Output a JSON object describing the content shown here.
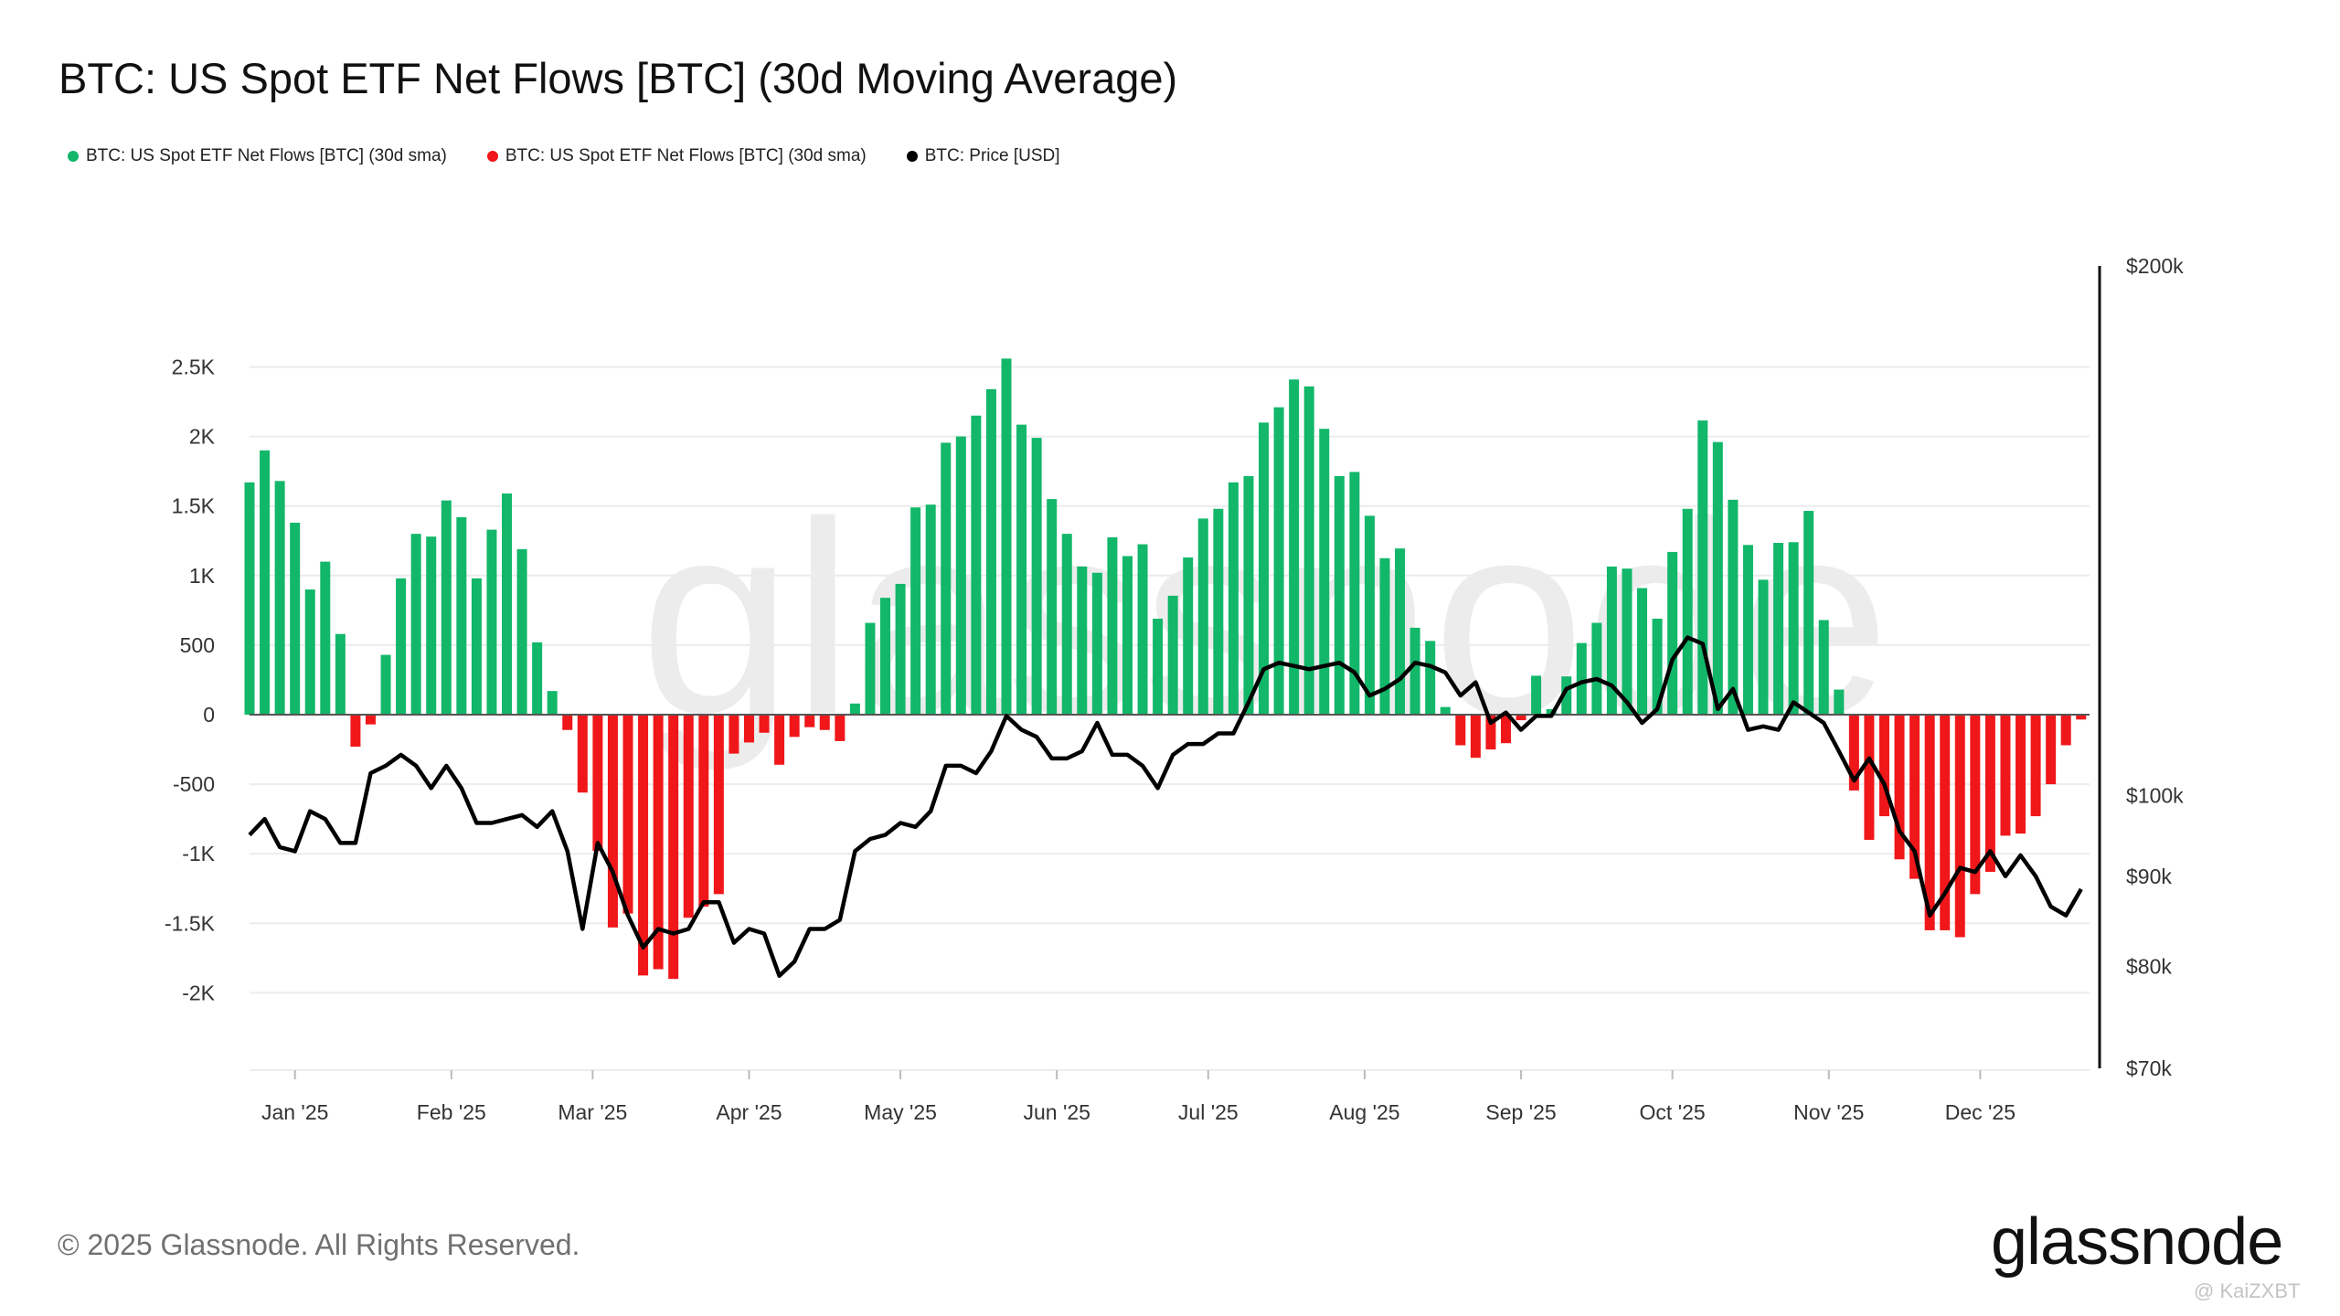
{
  "title": "BTC: US Spot ETF Net Flows [BTC] (30d Moving Average)",
  "legend": [
    {
      "label": "BTC: US Spot ETF Net Flows [BTC] (30d sma)",
      "color": "#12b76a"
    },
    {
      "label": "BTC: US Spot ETF Net Flows [BTC] (30d sma)",
      "color": "#f0171a"
    },
    {
      "label": "BTC: Price [USD]",
      "color": "#000000"
    }
  ],
  "footer": "© 2025 Glassnode. All Rights Reserved.",
  "logo": "glassnode",
  "watermark": "glassnode",
  "credit": "@ KaiZXBT",
  "chart_data": {
    "type": "bar+line",
    "title": "BTC: US Spot ETF Net Flows [BTC] (30d Moving Average)",
    "left_axis": {
      "ticks": [
        2500,
        2000,
        1500,
        1000,
        500,
        0,
        -500,
        -1000,
        -1500,
        -2000
      ],
      "tick_labels": [
        "2.5K",
        "2K",
        "1.5K",
        "1K",
        "500",
        "0",
        "-500",
        "-1K",
        "-1.5K",
        "-2K"
      ],
      "range": [
        -2300,
        2600
      ]
    },
    "right_axis": {
      "scale": "log",
      "ticks": [
        200000,
        100000,
        90000,
        80000,
        70000
      ],
      "tick_labels": [
        "$200k",
        "$100k",
        "$90k",
        "$80k",
        "$70k"
      ],
      "range": [
        70000,
        200000
      ]
    },
    "x_tick_labels": [
      "Jan '25",
      "Feb '25",
      "Mar '25",
      "Apr '25",
      "May '25",
      "Jun '25",
      "Jul '25",
      "Aug '25",
      "Sep '25",
      "Oct '25",
      "Nov '25",
      "Dec '25"
    ],
    "x_ticks": [
      "2025-01-01",
      "2025-02-01",
      "2025-03-01",
      "2025-04-01",
      "2025-05-01",
      "2025-06-01",
      "2025-07-01",
      "2025-08-01",
      "2025-09-01",
      "2025-10-01",
      "2025-11-01",
      "2025-12-01"
    ],
    "grid": true,
    "colors": {
      "positive": "#12b76a",
      "negative": "#f0171a",
      "price": "#000000"
    },
    "dates": [
      "2024-12-23",
      "2024-12-26",
      "2024-12-29",
      "2025-01-01",
      "2025-01-04",
      "2025-01-07",
      "2025-01-10",
      "2025-01-13",
      "2025-01-16",
      "2025-01-19",
      "2025-01-22",
      "2025-01-25",
      "2025-01-28",
      "2025-01-31",
      "2025-02-03",
      "2025-02-06",
      "2025-02-09",
      "2025-02-12",
      "2025-02-15",
      "2025-02-18",
      "2025-02-21",
      "2025-02-24",
      "2025-02-27",
      "2025-03-02",
      "2025-03-05",
      "2025-03-08",
      "2025-03-11",
      "2025-03-14",
      "2025-03-17",
      "2025-03-20",
      "2025-03-23",
      "2025-03-26",
      "2025-03-29",
      "2025-04-01",
      "2025-04-04",
      "2025-04-07",
      "2025-04-10",
      "2025-04-13",
      "2025-04-16",
      "2025-04-19",
      "2025-04-22",
      "2025-04-25",
      "2025-04-28",
      "2025-05-01",
      "2025-05-04",
      "2025-05-07",
      "2025-05-10",
      "2025-05-13",
      "2025-05-16",
      "2025-05-19",
      "2025-05-22",
      "2025-05-25",
      "2025-05-28",
      "2025-05-31",
      "2025-06-03",
      "2025-06-06",
      "2025-06-09",
      "2025-06-12",
      "2025-06-15",
      "2025-06-18",
      "2025-06-21",
      "2025-06-24",
      "2025-06-27",
      "2025-06-30",
      "2025-07-03",
      "2025-07-06",
      "2025-07-09",
      "2025-07-12",
      "2025-07-15",
      "2025-07-18",
      "2025-07-21",
      "2025-07-24",
      "2025-07-27",
      "2025-07-30",
      "2025-08-02",
      "2025-08-05",
      "2025-08-08",
      "2025-08-11",
      "2025-08-14",
      "2025-08-17",
      "2025-08-20",
      "2025-08-23",
      "2025-08-26",
      "2025-08-29",
      "2025-09-01",
      "2025-09-04",
      "2025-09-07",
      "2025-09-10",
      "2025-09-13",
      "2025-09-16",
      "2025-09-19",
      "2025-09-22",
      "2025-09-25",
      "2025-09-28",
      "2025-10-01",
      "2025-10-04",
      "2025-10-07",
      "2025-10-10",
      "2025-10-13",
      "2025-10-16",
      "2025-10-19",
      "2025-10-22",
      "2025-10-25",
      "2025-10-28",
      "2025-10-31",
      "2025-11-03",
      "2025-11-06",
      "2025-11-09",
      "2025-11-12",
      "2025-11-15",
      "2025-11-18",
      "2025-11-21",
      "2025-11-24",
      "2025-11-27",
      "2025-11-30",
      "2025-12-03",
      "2025-12-06",
      "2025-12-09",
      "2025-12-12",
      "2025-12-15",
      "2025-12-18",
      "2025-12-21"
    ],
    "series": [
      {
        "name": "BTC: US Spot ETF Net Flows [BTC] (30d sma)",
        "axis": "left",
        "type": "bar",
        "values": [
          1670,
          1900,
          1680,
          1380,
          900,
          1100,
          580,
          -230,
          -70,
          430,
          980,
          1300,
          1280,
          1540,
          1420,
          980,
          1330,
          1590,
          1190,
          520,
          170,
          -110,
          -560,
          -980,
          -1530,
          -1430,
          -1875,
          -1830,
          -1900,
          -1460,
          -1380,
          -1290,
          -280,
          -200,
          -130,
          -360,
          -160,
          -90,
          -110,
          -190,
          80,
          660,
          840,
          940,
          1490,
          1510,
          1955,
          2000,
          2150,
          2340,
          2560,
          2085,
          1990,
          1550,
          1300,
          1065,
          1020,
          1275,
          1140,
          1225,
          690,
          855,
          1130,
          1410,
          1480,
          1670,
          1715,
          2100,
          2210,
          2410,
          2360,
          2055,
          1715,
          1745,
          1430,
          1125,
          1195,
          625,
          530,
          55,
          -220,
          -310,
          -250,
          -205,
          -40,
          280,
          40,
          275,
          515,
          660,
          1065,
          1050,
          910,
          690,
          1170,
          1480,
          2115,
          1960,
          1545,
          1220,
          970,
          1235,
          1240,
          1465,
          680,
          180,
          -545,
          -900,
          -730,
          -1040,
          -1180,
          -1550,
          -1550,
          -1600,
          -1290,
          -1130,
          -870,
          -855,
          -730,
          -500,
          -220,
          -35
        ]
      },
      {
        "name": "BTC: Price [USD]",
        "axis": "right",
        "type": "line",
        "values": [
          95000,
          97000,
          93500,
          93000,
          98000,
          97000,
          94000,
          94000,
          103000,
          104000,
          105500,
          104000,
          101000,
          104000,
          101000,
          96500,
          96500,
          97000,
          97500,
          96000,
          98000,
          93000,
          84000,
          94000,
          90500,
          85500,
          82000,
          84000,
          83500,
          84000,
          87000,
          87000,
          82500,
          84000,
          83500,
          79000,
          80500,
          84000,
          84000,
          85000,
          93000,
          94500,
          95000,
          96500,
          96000,
          98000,
          104000,
          104000,
          103000,
          106000,
          111000,
          109000,
          108000,
          105000,
          105000,
          106000,
          110000,
          105500,
          105500,
          104000,
          101000,
          105500,
          107000,
          107000,
          108500,
          108500,
          113000,
          118000,
          119000,
          118500,
          118000,
          118500,
          119000,
          117500,
          114000,
          115000,
          116500,
          119000,
          118500,
          117500,
          114000,
          116000,
          110000,
          111500,
          109000,
          111000,
          111000,
          115000,
          116000,
          116500,
          115500,
          113000,
          110000,
          112000,
          119500,
          123000,
          122000,
          112000,
          115000,
          109000,
          109500,
          109000,
          113000,
          111500,
          110000,
          106000,
          102000,
          105000,
          101500,
          95500,
          93000,
          85500,
          88000,
          91000,
          90500,
          93000,
          90000,
          92500,
          90000,
          86500,
          85500,
          88500
        ]
      }
    ]
  }
}
